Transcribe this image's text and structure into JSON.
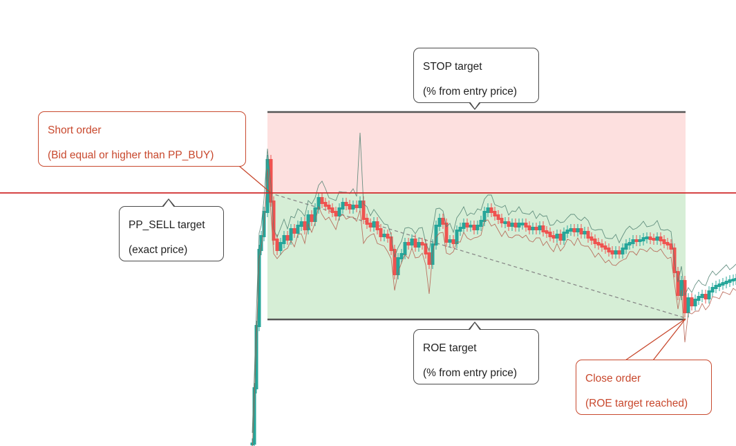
{
  "diagram": {
    "colors": {
      "stop_zone": "#fde0df",
      "roe_zone": "#d6eed6",
      "pp_line": "#d0282a",
      "band_line": "#555555",
      "bull": "#26a69a",
      "bear": "#ef5350",
      "red_note": "#c8482d",
      "gray_note": "#4a4a4a"
    },
    "callouts": {
      "stop": {
        "line1": "STOP  target",
        "line2": "(% from entry price)"
      },
      "roe": {
        "line1": "ROE target",
        "line2": "(% from entry price)"
      },
      "pp_sell": {
        "line1": "PP_SELL target",
        "line2": "(exact price)"
      },
      "short_order": {
        "line1": "Short order",
        "line2": "(Bid equal or higher than PP_BUY)"
      },
      "close_order": {
        "line1": "Close order",
        "line2": "(ROE target reached)"
      }
    }
  }
}
